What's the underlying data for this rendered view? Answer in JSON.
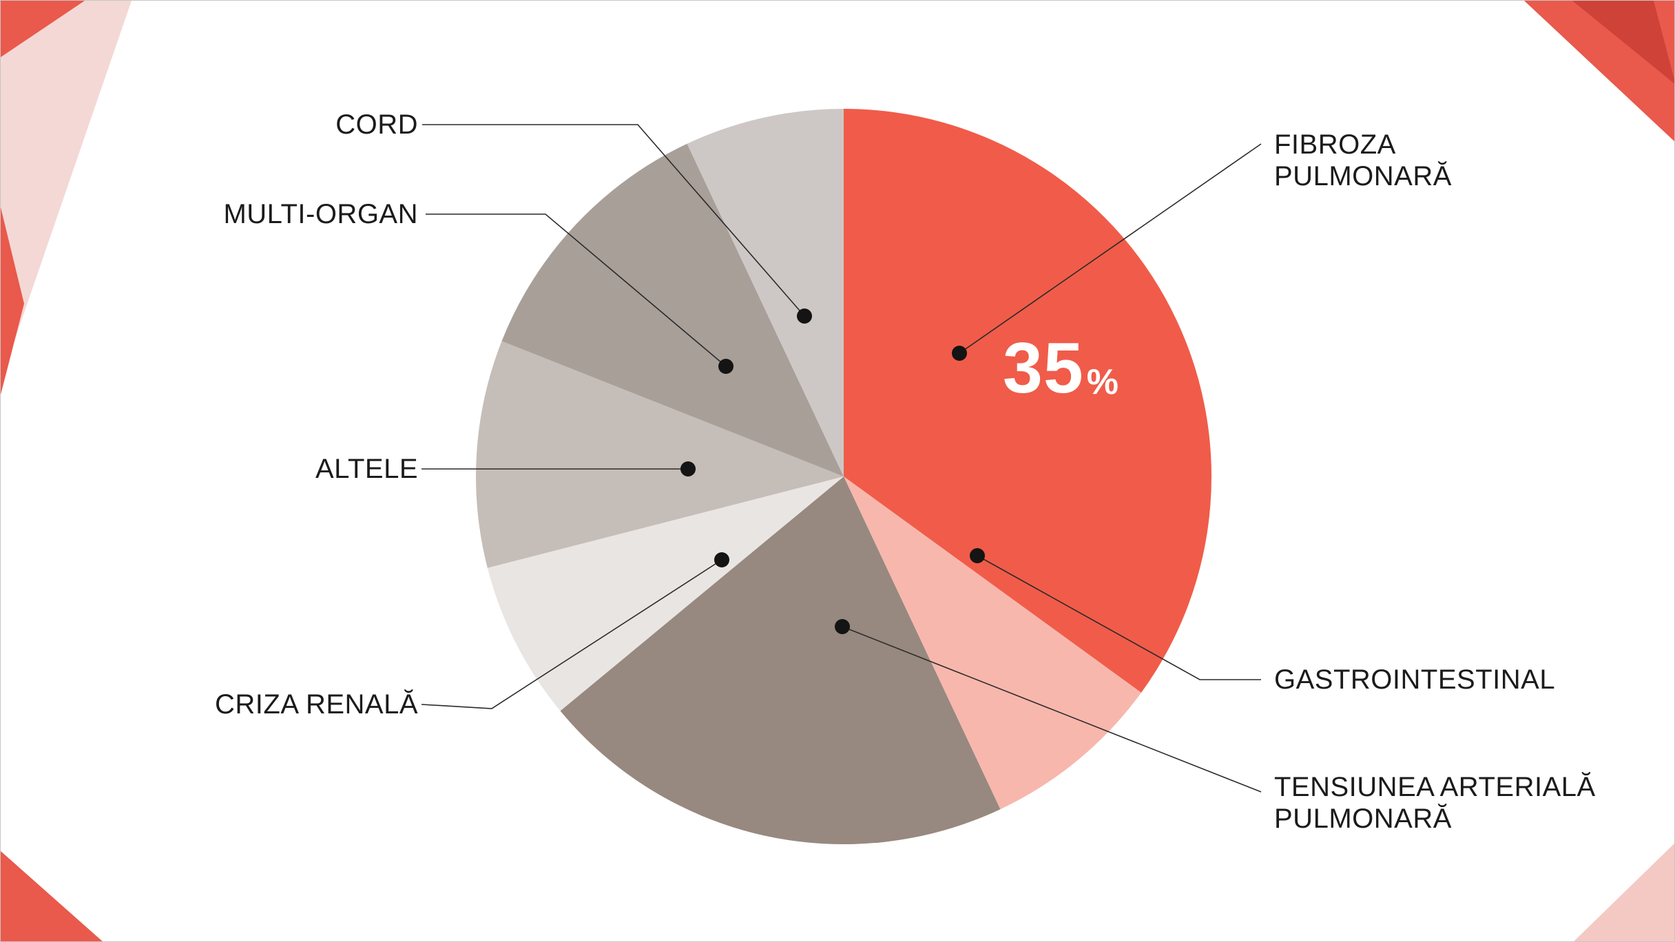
{
  "slide": {
    "background": "#ffffff",
    "accent_red": "#e9594c",
    "accent_dark_red": "#cf4237",
    "accent_pink": "#f5c9c3",
    "accent_light_pink": "#f4d8d5"
  },
  "chart_data": {
    "type": "pie",
    "title": "",
    "start_angle_deg": 0,
    "direction": "clockwise",
    "legend_position": "callout-labels",
    "segments": [
      {
        "label": "FIBROZA PULMONARĂ",
        "value": 35,
        "color": "#f05c49",
        "data_label": "35%"
      },
      {
        "label": "GASTROINTESTINAL",
        "value": 8,
        "color": "#f8b7ad"
      },
      {
        "label": "TENSIUNEA ARTERIALĂ PULMONARĂ",
        "value": 21,
        "color": "#97897f"
      },
      {
        "label": "CRIZA RENALĂ",
        "value": 7,
        "color": "#e9e5e3"
      },
      {
        "label": "ALTELE",
        "value": 10,
        "color": "#c5bdb8"
      },
      {
        "label": "MULTI-ORGAN",
        "value": 12,
        "color": "#a89f99"
      },
      {
        "label": "CORD",
        "value": 7,
        "color": "#cdc8c5"
      }
    ],
    "value_label": {
      "number": "35",
      "percent_sign": "%"
    }
  }
}
